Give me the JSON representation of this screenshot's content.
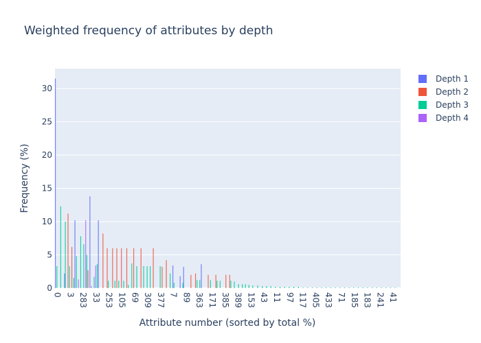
{
  "chart_data": {
    "type": "bar",
    "title": "Weighted frequency of attributes by depth",
    "xlabel": "Attribute number (sorted by total %)",
    "ylabel": "Frequency (%)",
    "ylim": [
      0,
      33
    ],
    "grid": true,
    "legend_position": "top-right",
    "x_tick_labels": [
      "0",
      "3",
      "283",
      "33",
      "253",
      "105",
      "69",
      "309",
      "377",
      "7",
      "89",
      "363",
      "171",
      "385",
      "389",
      "153",
      "43",
      "11",
      "97",
      "117",
      "405",
      "433",
      "71",
      "185",
      "183",
      "241",
      "41"
    ],
    "y_ticks": [
      0,
      5,
      10,
      15,
      20,
      25,
      30
    ],
    "colors": {
      "plot_bg": "#e5ecf6",
      "grid": "#ffffff",
      "text": "#2a3f5f",
      "depth_1": "#636efa",
      "depth_2": "#ef553b",
      "depth_3": "#00cc96",
      "depth_4": "#ab63fa"
    },
    "series": [
      {
        "name": "Depth 1",
        "color": "#636efa",
        "points": [
          [
            0.1,
            31.5
          ],
          [
            2.5,
            2.2
          ],
          [
            5.2,
            10.2
          ],
          [
            9.1,
            13.8
          ],
          [
            11.3,
            10.2
          ],
          [
            30.7,
            3.4
          ],
          [
            32.6,
            1.8
          ],
          [
            33.5,
            3.2
          ],
          [
            38.1,
            3.6
          ]
        ]
      },
      {
        "name": "Depth 2",
        "color": "#ef553b",
        "points": [
          [
            3.4,
            11.2
          ],
          [
            4.4,
            6.2
          ],
          [
            8.6,
            2.7
          ],
          [
            12.5,
            8.2
          ],
          [
            13.6,
            6.0
          ],
          [
            15.0,
            6.0
          ],
          [
            16.1,
            6.0
          ],
          [
            17.3,
            6.0
          ],
          [
            18.7,
            6.0
          ],
          [
            20.5,
            6.0
          ],
          [
            22.4,
            6.0
          ],
          [
            25.6,
            6.0
          ],
          [
            27.9,
            3.2
          ],
          [
            29.0,
            4.2
          ],
          [
            35.4,
            2.0
          ],
          [
            36.6,
            2.2
          ],
          [
            39.9,
            2.0
          ],
          [
            41.9,
            2.0
          ],
          [
            44.5,
            2.0
          ],
          [
            45.5,
            2.0
          ]
        ]
      },
      {
        "name": "Depth 3",
        "color": "#00cc96",
        "points": [
          [
            0.5,
            3.3
          ],
          [
            1.5,
            12.3
          ],
          [
            2.7,
            10.0
          ],
          [
            3.8,
            3.3
          ],
          [
            4.9,
            1.5
          ],
          [
            5.6,
            4.8
          ],
          [
            6.7,
            7.8
          ],
          [
            7.5,
            6.6
          ],
          [
            8.3,
            5.0
          ],
          [
            10.2,
            1.7
          ],
          [
            11.0,
            3.6
          ],
          [
            13.9,
            1.1
          ],
          [
            15.6,
            1.1
          ],
          [
            16.6,
            1.1
          ],
          [
            17.9,
            1.1
          ],
          [
            19.1,
            0.5
          ],
          [
            20.0,
            3.7
          ],
          [
            21.3,
            3.3
          ],
          [
            23.1,
            3.3
          ],
          [
            24.0,
            3.3
          ],
          [
            24.8,
            3.3
          ],
          [
            27.4,
            3.3
          ],
          [
            30.0,
            2.2
          ],
          [
            31.0,
            0.8
          ],
          [
            33.3,
            0.8
          ],
          [
            37.0,
            1.2
          ],
          [
            37.7,
            1.2
          ],
          [
            40.5,
            1.2
          ],
          [
            42.2,
            1.1
          ],
          [
            43.0,
            1.1
          ],
          [
            45.8,
            1.1
          ],
          [
            46.7,
            1.0
          ],
          [
            47.8,
            0.6
          ],
          [
            48.8,
            0.6
          ],
          [
            49.6,
            0.6
          ],
          [
            50.5,
            0.5
          ],
          [
            51.5,
            0.4
          ],
          [
            52.8,
            0.4
          ],
          [
            54.0,
            0.3
          ],
          [
            55.1,
            0.3
          ],
          [
            56.2,
            0.3
          ],
          [
            57.4,
            0.2
          ],
          [
            58.6,
            0.2
          ],
          [
            59.8,
            0.2
          ],
          [
            61.0,
            0.2
          ],
          [
            62.2,
            0.2
          ],
          [
            63.4,
            0.2
          ],
          [
            64.6,
            0.1
          ],
          [
            65.8,
            0.1
          ],
          [
            67.0,
            0.1
          ],
          [
            68.2,
            0.1
          ],
          [
            69.4,
            0.1
          ],
          [
            70.6,
            0.1
          ],
          [
            71.8,
            0.1
          ],
          [
            73.0,
            0.1
          ],
          [
            74.2,
            0.1
          ],
          [
            75.4,
            0.1
          ],
          [
            76.6,
            0.1
          ],
          [
            77.8,
            0.1
          ],
          [
            79.0,
            0.1
          ],
          [
            80.2,
            0.1
          ],
          [
            81.4,
            0.1
          ],
          [
            82.6,
            0.1
          ],
          [
            83.8,
            0.1
          ],
          [
            85.0,
            0.1
          ],
          [
            86.2,
            0.1
          ],
          [
            87.4,
            0.1
          ],
          [
            88.6,
            0.1
          ]
        ]
      },
      {
        "name": "Depth 4",
        "color": "#ab63fa",
        "points": [
          [
            6.1,
            1.3
          ],
          [
            8.0,
            10.2
          ],
          [
            9.5,
            0.3
          ],
          [
            10.6,
            3.4
          ]
        ]
      }
    ]
  }
}
